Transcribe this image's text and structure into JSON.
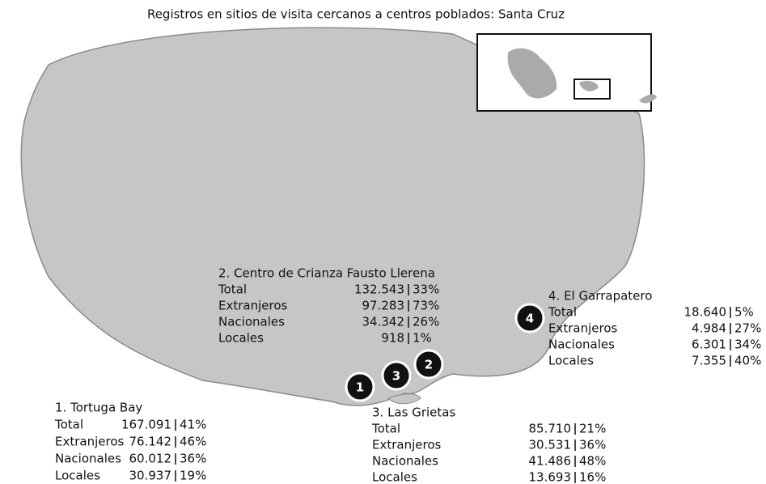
{
  "title": "Registros en sitios de visita cercanos a centros poblados: Santa Cruz",
  "sites": [
    {
      "marker": "1",
      "name": "1. Tortuga Bay",
      "rows": [
        {
          "label": "Total",
          "value": "167.091",
          "share": "41%"
        },
        {
          "label": "Extranjeros",
          "value": "76.142",
          "share": "46%"
        },
        {
          "label": "Nacionales",
          "value": "60.012",
          "share": "36%"
        },
        {
          "label": "Locales",
          "value": "30.937",
          "share": "19%"
        }
      ]
    },
    {
      "marker": "2",
      "name": "2. Centro de Crianza Fausto Llerena",
      "rows": [
        {
          "label": "Total",
          "value": "132.543",
          "share": "33%"
        },
        {
          "label": "Extranjeros",
          "value": "97.283",
          "share": "73%"
        },
        {
          "label": "Nacionales",
          "value": "34.342",
          "share": "26%"
        },
        {
          "label": "Locales",
          "value": "918",
          "share": "1%"
        }
      ]
    },
    {
      "marker": "3",
      "name": "3. Las Grietas",
      "rows": [
        {
          "label": "Total",
          "value": "85.710",
          "share": "21%"
        },
        {
          "label": "Extranjeros",
          "value": "30.531",
          "share": "36%"
        },
        {
          "label": "Nacionales",
          "value": "41.486",
          "share": "48%"
        },
        {
          "label": "Locales",
          "value": "13.693",
          "share": "16%"
        }
      ]
    },
    {
      "marker": "4",
      "name": "4. El Garrapatero",
      "rows": [
        {
          "label": "Total",
          "value": "18.640",
          "share": "5%"
        },
        {
          "label": "Extranjeros",
          "value": "4.984",
          "share": "27%"
        },
        {
          "label": "Nacionales",
          "value": "6.301",
          "share": "34%"
        },
        {
          "label": "Locales",
          "value": "7.355",
          "share": "40%"
        }
      ]
    }
  ]
}
